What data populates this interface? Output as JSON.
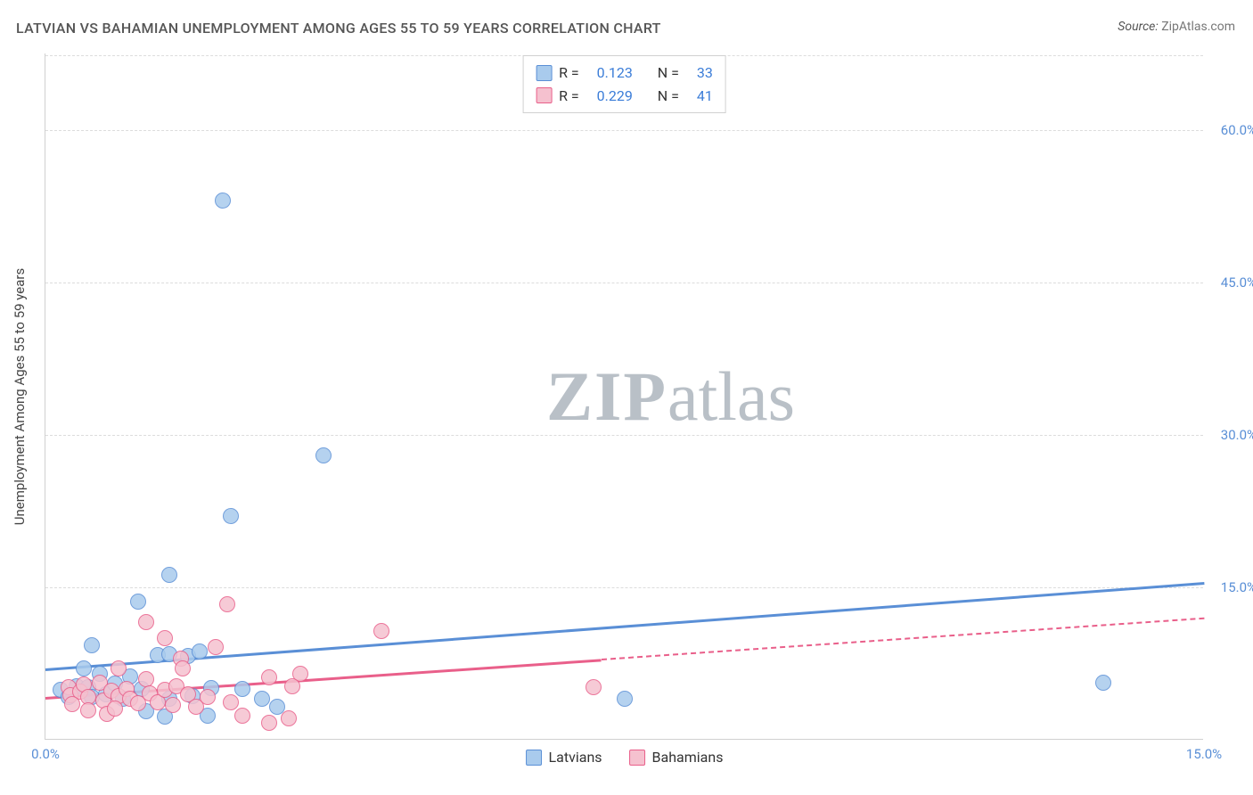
{
  "title": "LATVIAN VS BAHAMIAN UNEMPLOYMENT AMONG AGES 55 TO 59 YEARS CORRELATION CHART",
  "source_label": "Source:",
  "source_value": "ZipAtlas.com",
  "ylabel": "Unemployment Among Ages 55 to 59 years",
  "watermark_bold": "ZIP",
  "watermark_light": "atlas",
  "watermark_color": "#b9c0c7",
  "chart": {
    "type": "scatter",
    "xlim": [
      0,
      15
    ],
    "ylim": [
      0,
      67.5
    ],
    "xticks": [
      {
        "v": 0,
        "label": "0.0%"
      },
      {
        "v": 15,
        "label": "15.0%"
      }
    ],
    "yticks": [
      {
        "v": 15,
        "label": "15.0%"
      },
      {
        "v": 30,
        "label": "30.0%"
      },
      {
        "v": 45,
        "label": "45.0%"
      },
      {
        "v": 60,
        "label": "60.0%"
      }
    ],
    "ytick_color": "#5a8fd6",
    "xtick_color": "#5a8fd6",
    "background_color": "#ffffff",
    "grid_color": "#dcdcdc",
    "marker_radius": 9,
    "marker_border_width": 1.5,
    "series": [
      {
        "name": "Latvians",
        "fill": "#a9cbed",
        "stroke": "#5a8fd6",
        "r_value": "0.123",
        "n_value": "33",
        "trend": {
          "y_at_xmin": 7.0,
          "y_at_xmax": 15.5,
          "solid_until_x": 15.0
        },
        "points": [
          {
            "x": 2.3,
            "y": 53.0
          },
          {
            "x": 3.6,
            "y": 28.0
          },
          {
            "x": 2.4,
            "y": 22.0
          },
          {
            "x": 1.6,
            "y": 16.2
          },
          {
            "x": 1.2,
            "y": 13.6
          },
          {
            "x": 0.6,
            "y": 9.3
          },
          {
            "x": 0.5,
            "y": 7.0
          },
          {
            "x": 0.2,
            "y": 4.9
          },
          {
            "x": 0.3,
            "y": 4.2
          },
          {
            "x": 0.4,
            "y": 5.3
          },
          {
            "x": 0.55,
            "y": 5.2
          },
          {
            "x": 0.6,
            "y": 4.2
          },
          {
            "x": 0.7,
            "y": 6.5
          },
          {
            "x": 0.78,
            "y": 4.5
          },
          {
            "x": 0.9,
            "y": 5.5
          },
          {
            "x": 1.0,
            "y": 4.0
          },
          {
            "x": 1.1,
            "y": 6.2
          },
          {
            "x": 1.45,
            "y": 8.3
          },
          {
            "x": 1.6,
            "y": 8.4
          },
          {
            "x": 1.6,
            "y": 4.0
          },
          {
            "x": 1.3,
            "y": 2.8
          },
          {
            "x": 1.25,
            "y": 5.0
          },
          {
            "x": 1.55,
            "y": 2.3
          },
          {
            "x": 1.85,
            "y": 8.2
          },
          {
            "x": 1.9,
            "y": 4.3
          },
          {
            "x": 2.0,
            "y": 8.7
          },
          {
            "x": 2.15,
            "y": 5.1
          },
          {
            "x": 2.1,
            "y": 2.4
          },
          {
            "x": 2.55,
            "y": 5.0
          },
          {
            "x": 2.8,
            "y": 4.0
          },
          {
            "x": 3.0,
            "y": 3.2
          },
          {
            "x": 7.5,
            "y": 4.0
          },
          {
            "x": 13.7,
            "y": 5.6
          }
        ]
      },
      {
        "name": "Bahamians",
        "fill": "#f5c1cf",
        "stroke": "#e95f8a",
        "r_value": "0.229",
        "n_value": "41",
        "trend": {
          "y_at_xmin": 4.2,
          "y_at_xmax": 12.0,
          "solid_until_x": 7.2
        },
        "points": [
          {
            "x": 2.35,
            "y": 13.3
          },
          {
            "x": 1.3,
            "y": 11.6
          },
          {
            "x": 4.35,
            "y": 10.7
          },
          {
            "x": 1.55,
            "y": 10.0
          },
          {
            "x": 2.2,
            "y": 9.1
          },
          {
            "x": 1.75,
            "y": 8.0
          },
          {
            "x": 1.78,
            "y": 7.0
          },
          {
            "x": 0.95,
            "y": 7.0
          },
          {
            "x": 1.3,
            "y": 6.0
          },
          {
            "x": 3.3,
            "y": 6.5
          },
          {
            "x": 2.9,
            "y": 6.1
          },
          {
            "x": 3.2,
            "y": 5.3
          },
          {
            "x": 7.1,
            "y": 5.2
          },
          {
            "x": 0.3,
            "y": 5.2
          },
          {
            "x": 0.32,
            "y": 4.4
          },
          {
            "x": 0.45,
            "y": 4.7
          },
          {
            "x": 0.5,
            "y": 5.4
          },
          {
            "x": 0.55,
            "y": 4.2
          },
          {
            "x": 0.7,
            "y": 5.6
          },
          {
            "x": 0.75,
            "y": 3.9
          },
          {
            "x": 0.85,
            "y": 4.8
          },
          {
            "x": 0.95,
            "y": 4.3
          },
          {
            "x": 1.05,
            "y": 5.0
          },
          {
            "x": 1.1,
            "y": 4.0
          },
          {
            "x": 1.2,
            "y": 3.6
          },
          {
            "x": 1.35,
            "y": 4.6
          },
          {
            "x": 1.45,
            "y": 3.7
          },
          {
            "x": 1.55,
            "y": 4.9
          },
          {
            "x": 1.65,
            "y": 3.4
          },
          {
            "x": 1.7,
            "y": 5.3
          },
          {
            "x": 1.85,
            "y": 4.5
          },
          {
            "x": 1.95,
            "y": 3.2
          },
          {
            "x": 2.1,
            "y": 4.2
          },
          {
            "x": 2.4,
            "y": 3.7
          },
          {
            "x": 2.55,
            "y": 2.4
          },
          {
            "x": 2.9,
            "y": 1.7
          },
          {
            "x": 3.15,
            "y": 2.1
          },
          {
            "x": 0.8,
            "y": 2.5
          },
          {
            "x": 0.55,
            "y": 2.9
          },
          {
            "x": 0.9,
            "y": 3.1
          },
          {
            "x": 0.35,
            "y": 3.5
          }
        ]
      }
    ]
  },
  "legend_labels": {
    "r": "R  =",
    "n": "N  ="
  }
}
